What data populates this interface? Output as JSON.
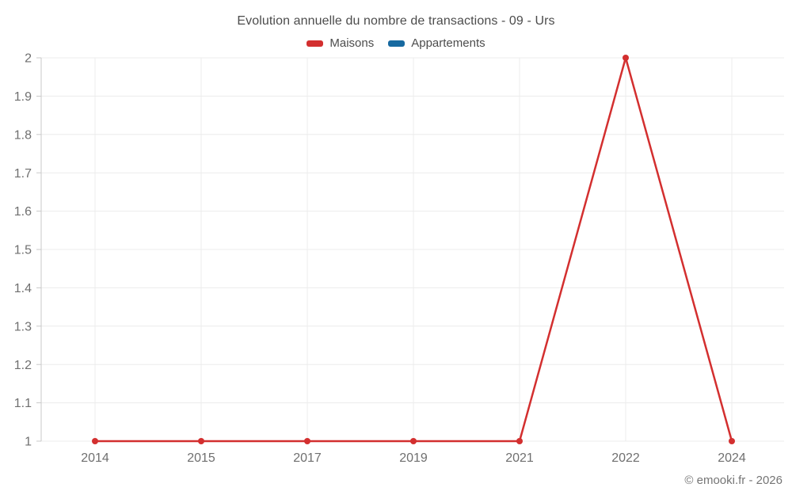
{
  "chart_data": {
    "type": "line",
    "title": "Evolution annuelle du nombre de transactions - 09 - Urs",
    "categories": [
      "2014",
      "2015",
      "2017",
      "2019",
      "2021",
      "2022",
      "2024"
    ],
    "series": [
      {
        "name": "Maisons",
        "color": "#d32f2f",
        "values": [
          1,
          1,
          1,
          1,
          1,
          2,
          1
        ]
      },
      {
        "name": "Appartements",
        "color": "#1769a0",
        "values": []
      }
    ],
    "y_axis": {
      "min": 1,
      "max": 2,
      "tick_step": 0.1,
      "tick_labels": [
        "1",
        "1.1",
        "1.2",
        "1.3",
        "1.4",
        "1.5",
        "1.6",
        "1.7",
        "1.8",
        "1.9",
        "2"
      ]
    },
    "x_axis_label": "",
    "y_axis_label": "",
    "grid": true,
    "legend_position": "top"
  },
  "footer": {
    "credit": "© emooki.fr - 2026"
  }
}
